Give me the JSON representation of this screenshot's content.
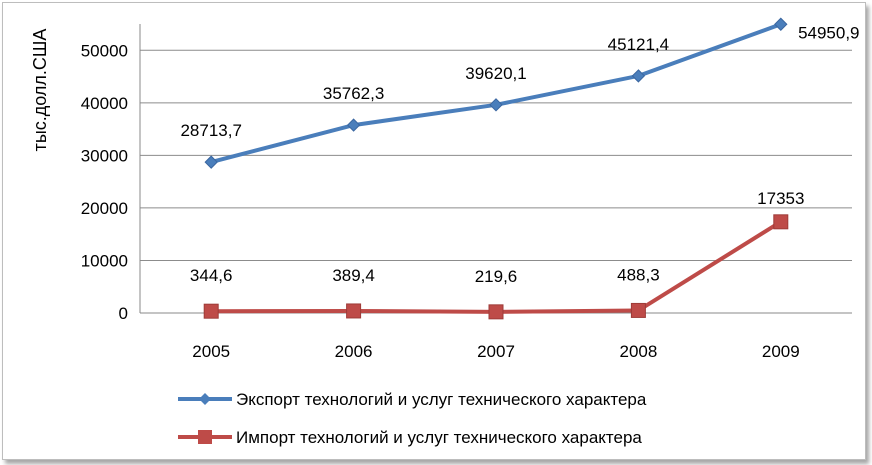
{
  "chart_data": {
    "type": "line",
    "categories": [
      "2005",
      "2006",
      "2007",
      "2008",
      "2009"
    ],
    "ylabel": "тыс.долл.США",
    "ylim": [
      0,
      55000
    ],
    "yticks": [
      0,
      10000,
      20000,
      30000,
      40000,
      50000
    ],
    "grid": true,
    "legend_position": "bottom",
    "series": [
      {
        "name": "Экспорт технологий и услуг технического характера",
        "values": [
          28713.7,
          35762.3,
          39620.1,
          45121.4,
          54950.9
        ],
        "labels": [
          "28713,7",
          "35762,3",
          "39620,1",
          "45121,4",
          "54950,9"
        ],
        "color": "#4a7ebb",
        "marker": "diamond"
      },
      {
        "name": "Импорт технологий и услуг технического характера",
        "values": [
          344.6,
          389.4,
          219.6,
          488.3,
          17353
        ],
        "labels": [
          "344,6",
          "389,4",
          "219,6",
          "488,3",
          "17353"
        ],
        "color": "#be4b48",
        "marker": "square"
      }
    ]
  }
}
